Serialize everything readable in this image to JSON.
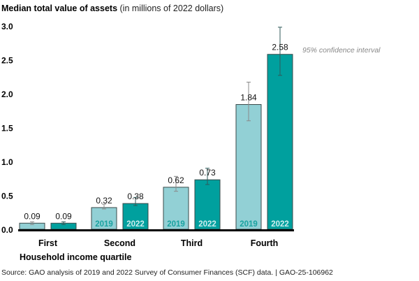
{
  "chart_data": {
    "type": "bar",
    "title": "Median total value of assets",
    "subtitle": "(in millions of 2022 dollars)",
    "xlabel": "Household income quartile",
    "ylabel": "",
    "ylim": [
      0,
      3.0
    ],
    "yticks": [
      "0.0",
      "0.5",
      "1.0",
      "1.5",
      "2.0",
      "2.5",
      "3.0"
    ],
    "categories": [
      "First",
      "Second",
      "Third",
      "Fourth"
    ],
    "series": [
      {
        "name": "2019",
        "color": "#92D0D5",
        "label_color": "#1AA3A0",
        "values": [
          0.09,
          0.32,
          0.62,
          1.84
        ],
        "value_labels": [
          "0.09",
          "0.32",
          "0.62",
          "1.84"
        ],
        "ci_low": [
          0.07,
          0.3,
          0.56,
          1.6
        ],
        "ci_high": [
          0.11,
          0.37,
          0.78,
          2.17
        ],
        "bar_labels": [
          "",
          "2019",
          "2019",
          "2019"
        ]
      },
      {
        "name": "2022",
        "color": "#00A09E",
        "label_color": "#CDEDEE",
        "values": [
          0.09,
          0.38,
          0.73,
          2.58
        ],
        "value_labels": [
          "0.09",
          "0.38",
          "0.73",
          "2.58"
        ],
        "ci_low": [
          0.07,
          0.35,
          0.66,
          2.27
        ],
        "ci_high": [
          0.11,
          0.47,
          0.9,
          2.98
        ],
        "bar_labels": [
          "",
          "2022",
          "2022",
          "2022"
        ]
      }
    ],
    "annotation": "95% confidence interval",
    "grid": false
  },
  "source": "Source: GAO analysis of 2019 and 2022 Survey of Consumer Finances (SCF) data.  |  GAO-25-106962"
}
